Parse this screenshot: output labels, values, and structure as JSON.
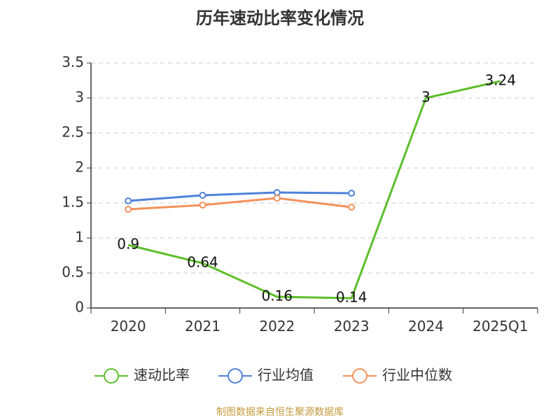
{
  "chart_data": {
    "type": "line",
    "title": "历年速动比率变化情况",
    "categories": [
      "2020",
      "2021",
      "2022",
      "2023",
      "2024",
      "2025Q1"
    ],
    "ylim": [
      0,
      3.5
    ],
    "yticks": [
      "0",
      "0.5",
      "1",
      "1.5",
      "2",
      "2.5",
      "3",
      "3.5"
    ],
    "ytick_values": [
      0,
      0.5,
      1,
      1.5,
      2,
      2.5,
      3,
      3.5
    ],
    "grid": true,
    "legend_position": "bottom",
    "series": [
      {
        "name": "速动比率",
        "color": "#5cbf2a",
        "values": [
          0.9,
          0.64,
          0.16,
          0.14,
          3,
          3.24
        ],
        "labels": [
          "0.9",
          "0.64",
          "0.16",
          "0.14",
          "3",
          "3.24"
        ],
        "show_markers": false
      },
      {
        "name": "行业均值",
        "color": "#4f82d9",
        "values": [
          1.53,
          1.61,
          1.65,
          1.64,
          null,
          null
        ],
        "show_markers": true
      },
      {
        "name": "行业中位数",
        "color": "#f4915b",
        "values": [
          1.41,
          1.47,
          1.57,
          1.44,
          null,
          null
        ],
        "show_markers": true
      }
    ]
  },
  "footer": {
    "source": "制图数据来自恒生聚源数据库"
  }
}
